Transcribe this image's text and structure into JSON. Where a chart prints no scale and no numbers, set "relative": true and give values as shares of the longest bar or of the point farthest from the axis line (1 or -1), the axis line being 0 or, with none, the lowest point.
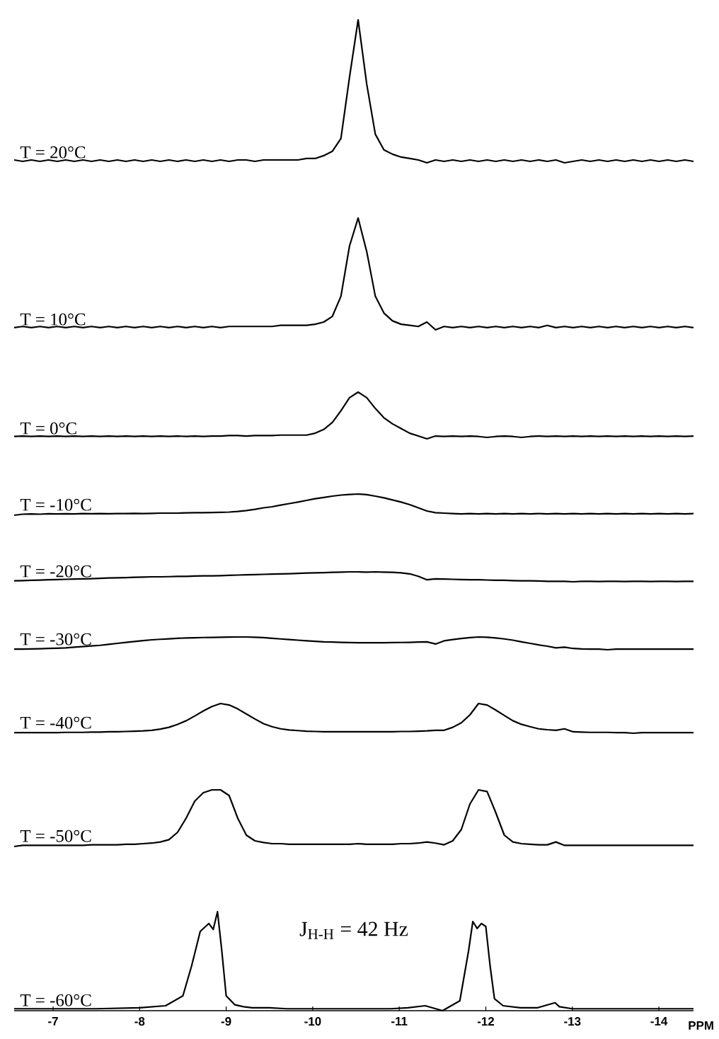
{
  "chart_data": [
    {
      "type": "line",
      "relative": true,
      "tick_labels": false,
      "categories": [
        null,
        null,
        null,
        null,
        null,
        null,
        null,
        null,
        null,
        null,
        null,
        null,
        null,
        null,
        null,
        null,
        null,
        null,
        null,
        null,
        null,
        null,
        null,
        null,
        null,
        null,
        null,
        null,
        null,
        null,
        null,
        null,
        null,
        null,
        null,
        null,
        null,
        null,
        null,
        null,
        null,
        null,
        null,
        null,
        null,
        null,
        null,
        null,
        null,
        null,
        null,
        null,
        null,
        null,
        null,
        null,
        null,
        null,
        null,
        null,
        null,
        null,
        null,
        null,
        null,
        null,
        null,
        null,
        null,
        null,
        null,
        null,
        null,
        null,
        null,
        null,
        null,
        null,
        null,
        null
      ],
      "series": [
        {
          "name": "T = 20°C",
          "color": "#000000",
          "values": [
            0.02,
            0.01,
            0.02,
            0.01,
            0.02,
            0.01,
            0.02,
            0.01,
            0.02,
            0.01,
            0.02,
            0.01,
            0.02,
            0.01,
            0.02,
            0.01,
            0.02,
            0.01,
            0.02,
            0.01,
            0.02,
            0.01,
            0.02,
            0.01,
            0.02,
            0.01,
            0.02,
            0.02,
            0.01,
            0.02,
            0.02,
            0.02,
            0.02,
            0.02,
            0.03,
            0.03,
            0.05,
            0.08,
            0.17,
            0.6,
            1,
            0.55,
            0.2,
            0.09,
            0.06,
            0.04,
            0.03,
            0.02,
            0.0,
            0.02,
            0.01,
            0.02,
            0.01,
            0.02,
            0.01,
            0.02,
            0.01,
            0.02,
            0.01,
            0.02,
            0.01,
            0.02,
            0.01,
            0.02,
            0.0,
            0.01,
            0.02,
            0.01,
            0.02,
            0.01,
            0.02,
            0.01,
            0.02,
            0.01,
            0.02,
            0.01,
            0.02,
            0.01,
            0.02,
            0.01
          ]
        }
      ]
    },
    {
      "type": "line",
      "relative": true,
      "tick_labels": false,
      "categories": [
        null,
        null,
        null,
        null,
        null,
        null,
        null,
        null,
        null,
        null,
        null,
        null,
        null,
        null,
        null,
        null,
        null,
        null,
        null,
        null,
        null,
        null,
        null,
        null,
        null,
        null,
        null,
        null,
        null,
        null,
        null,
        null,
        null,
        null,
        null,
        null,
        null,
        null,
        null,
        null,
        null,
        null,
        null,
        null,
        null,
        null,
        null,
        null,
        null,
        null,
        null,
        null,
        null,
        null,
        null,
        null,
        null,
        null,
        null,
        null,
        null,
        null,
        null,
        null,
        null,
        null,
        null,
        null,
        null,
        null,
        null,
        null,
        null,
        null,
        null,
        null,
        null,
        null,
        null,
        null
      ],
      "series": [
        {
          "name": "T = 10°C",
          "color": "#000000",
          "values": [
            0.02,
            0.03,
            0.02,
            0.03,
            0.02,
            0.03,
            0.02,
            0.03,
            0.02,
            0.03,
            0.02,
            0.03,
            0.02,
            0.03,
            0.02,
            0.03,
            0.02,
            0.03,
            0.02,
            0.03,
            0.02,
            0.03,
            0.02,
            0.03,
            0.02,
            0.03,
            0.03,
            0.03,
            0.03,
            0.03,
            0.03,
            0.04,
            0.04,
            0.04,
            0.04,
            0.05,
            0.07,
            0.12,
            0.3,
            0.75,
            1,
            0.7,
            0.3,
            0.15,
            0.08,
            0.05,
            0.04,
            0.03,
            0.07,
            0.0,
            0.03,
            0.02,
            0.03,
            0.02,
            0.03,
            0.02,
            0.03,
            0.02,
            0.03,
            0.02,
            0.03,
            0.02,
            0.04,
            0.02,
            0.03,
            0.02,
            0.03,
            0.02,
            0.03,
            0.02,
            0.03,
            0.02,
            0.03,
            0.02,
            0.03,
            0.02,
            0.03,
            0.02,
            0.03,
            0.02
          ]
        }
      ]
    },
    {
      "type": "line",
      "relative": true,
      "tick_labels": false,
      "categories": [
        null,
        null,
        null,
        null,
        null,
        null,
        null,
        null,
        null,
        null,
        null,
        null,
        null,
        null,
        null,
        null,
        null,
        null,
        null,
        null,
        null,
        null,
        null,
        null,
        null,
        null,
        null,
        null,
        null,
        null,
        null,
        null,
        null,
        null,
        null,
        null,
        null,
        null,
        null,
        null,
        null,
        null,
        null,
        null,
        null,
        null,
        null,
        null,
        null,
        null,
        null,
        null,
        null,
        null,
        null,
        null,
        null,
        null,
        null,
        null,
        null,
        null,
        null,
        null,
        null,
        null,
        null,
        null,
        null,
        null,
        null,
        null,
        null,
        null,
        null,
        null,
        null,
        null,
        null,
        null
      ],
      "series": [
        {
          "name": "T = 0°C",
          "color": "#000000",
          "values": [
            0.05,
            0.06,
            0.05,
            0.06,
            0.05,
            0.06,
            0.05,
            0.06,
            0.05,
            0.06,
            0.05,
            0.06,
            0.05,
            0.06,
            0.05,
            0.06,
            0.05,
            0.06,
            0.05,
            0.06,
            0.05,
            0.06,
            0.05,
            0.06,
            0.06,
            0.07,
            0.07,
            0.06,
            0.07,
            0.07,
            0.07,
            0.08,
            0.08,
            0.08,
            0.08,
            0.12,
            0.2,
            0.35,
            0.6,
            0.88,
            1,
            0.88,
            0.65,
            0.45,
            0.32,
            0.22,
            0.12,
            0.06,
            0.0,
            0.06,
            0.05,
            0.06,
            0.05,
            0.06,
            0.05,
            0.03,
            0.05,
            0.06,
            0.05,
            0.03,
            0.05,
            0.06,
            0.05,
            0.06,
            0.05,
            0.06,
            0.05,
            0.06,
            0.05,
            0.06,
            0.05,
            0.06,
            0.05,
            0.06,
            0.05,
            0.06,
            0.05,
            0.06,
            0.05,
            0.06
          ]
        }
      ]
    },
    {
      "type": "line",
      "relative": true,
      "tick_labels": false,
      "categories": [
        null,
        null,
        null,
        null,
        null,
        null,
        null,
        null,
        null,
        null,
        null,
        null,
        null,
        null,
        null,
        null,
        null,
        null,
        null,
        null,
        null,
        null,
        null,
        null,
        null,
        null,
        null,
        null,
        null,
        null,
        null,
        null,
        null,
        null,
        null,
        null,
        null,
        null,
        null,
        null,
        null,
        null,
        null,
        null,
        null,
        null,
        null,
        null,
        null,
        null,
        null,
        null,
        null,
        null,
        null,
        null,
        null,
        null,
        null,
        null,
        null,
        null,
        null,
        null,
        null,
        null,
        null,
        null,
        null,
        null,
        null,
        null,
        null,
        null,
        null,
        null,
        null,
        null,
        null,
        null
      ],
      "series": [
        {
          "name": "T = -10°C",
          "color": "#000000",
          "values": [
            0.0,
            0.05,
            0.06,
            0.05,
            0.07,
            0.06,
            0.07,
            0.06,
            0.08,
            0.07,
            0.08,
            0.07,
            0.08,
            0.08,
            0.09,
            0.08,
            0.09,
            0.1,
            0.1,
            0.1,
            0.11,
            0.12,
            0.12,
            0.13,
            0.14,
            0.15,
            0.18,
            0.22,
            0.28,
            0.35,
            0.4,
            0.48,
            0.55,
            0.62,
            0.7,
            0.78,
            0.84,
            0.9,
            0.95,
            0.98,
            1,
            0.97,
            0.9,
            0.82,
            0.72,
            0.62,
            0.5,
            0.35,
            0.2,
            0.12,
            0.1,
            0.08,
            0.06,
            0.08,
            0.06,
            0.08,
            0.06,
            0.08,
            0.06,
            0.08,
            0.06,
            0.08,
            0.06,
            0.08,
            0.06,
            0.08,
            0.06,
            0.08,
            0.06,
            0.08,
            0.06,
            0.08,
            0.06,
            0.08,
            0.06,
            0.08,
            0.06,
            0.08,
            0.06,
            0.08
          ]
        }
      ]
    },
    {
      "type": "line",
      "relative": true,
      "tick_labels": false,
      "categories": [
        null,
        null,
        null,
        null,
        null,
        null,
        null,
        null,
        null,
        null,
        null,
        null,
        null,
        null,
        null,
        null,
        null,
        null,
        null,
        null,
        null,
        null,
        null,
        null,
        null,
        null,
        null,
        null,
        null,
        null,
        null,
        null,
        null,
        null,
        null,
        null,
        null,
        null,
        null,
        null,
        null,
        null,
        null,
        null,
        null,
        null,
        null,
        null,
        null,
        null,
        null,
        null,
        null,
        null,
        null,
        null,
        null,
        null,
        null,
        null,
        null,
        null,
        null,
        null,
        null,
        null,
        null,
        null,
        null,
        null,
        null,
        null,
        null,
        null,
        null,
        null,
        null,
        null,
        null,
        null
      ],
      "series": [
        {
          "name": "T = -20°C",
          "color": "#000000",
          "values": [
            0.1,
            0.12,
            0.15,
            0.17,
            0.2,
            0.22,
            0.25,
            0.28,
            0.3,
            0.32,
            0.35,
            0.38,
            0.4,
            0.42,
            0.45,
            0.48,
            0.5,
            0.5,
            0.52,
            0.55,
            0.55,
            0.58,
            0.6,
            0.6,
            0.62,
            0.65,
            0.68,
            0.7,
            0.72,
            0.75,
            0.78,
            0.8,
            0.82,
            0.85,
            0.88,
            0.9,
            0.92,
            0.95,
            0.97,
            1,
            1,
            0.98,
            1,
            0.97,
            0.95,
            0.9,
            0.8,
            0.55,
            0.2,
            0.3,
            0.28,
            0.25,
            0.22,
            0.2,
            0.2,
            0.18,
            0.15,
            0.15,
            0.12,
            0.1,
            0.1,
            0.08,
            0.05,
            0.05,
            0.05,
            0.0,
            0.05,
            0.05,
            0.03,
            0.05,
            0.05,
            0.03,
            0.05,
            0.05,
            0.03,
            0.05,
            0.05,
            0.03,
            0.05,
            0.05
          ]
        }
      ]
    },
    {
      "type": "line",
      "relative": true,
      "tick_labels": false,
      "categories": [
        null,
        null,
        null,
        null,
        null,
        null,
        null,
        null,
        null,
        null,
        null,
        null,
        null,
        null,
        null,
        null,
        null,
        null,
        null,
        null,
        null,
        null,
        null,
        null,
        null,
        null,
        null,
        null,
        null,
        null,
        null,
        null,
        null,
        null,
        null,
        null,
        null,
        null,
        null,
        null,
        null,
        null,
        null,
        null,
        null,
        null,
        null,
        null,
        null,
        null,
        null,
        null,
        null,
        null,
        null,
        null,
        null,
        null,
        null,
        null,
        null,
        null,
        null,
        null,
        null,
        null,
        null,
        null,
        null,
        null,
        null,
        null,
        null,
        null,
        null,
        null,
        null,
        null,
        null,
        null
      ],
      "series": [
        {
          "name": "T = -30°C",
          "color": "#000000",
          "values": [
            0.05,
            0.05,
            0.06,
            0.08,
            0.1,
            0.12,
            0.15,
            0.2,
            0.25,
            0.3,
            0.35,
            0.42,
            0.5,
            0.58,
            0.65,
            0.72,
            0.78,
            0.82,
            0.86,
            0.9,
            0.92,
            0.94,
            0.96,
            0.97,
            0.98,
            0.99,
            1,
            1,
            0.98,
            0.95,
            0.9,
            0.85,
            0.8,
            0.75,
            0.7,
            0.66,
            0.62,
            0.6,
            0.58,
            0.56,
            0.55,
            0.55,
            0.55,
            0.55,
            0.56,
            0.57,
            0.58,
            0.6,
            0.62,
            0.45,
            0.7,
            0.8,
            0.88,
            0.95,
            1,
            0.98,
            0.92,
            0.85,
            0.75,
            0.62,
            0.5,
            0.38,
            0.28,
            0.15,
            0.2,
            0.1,
            0.06,
            0.05,
            0.05,
            0.0,
            0.05,
            0.05,
            0.05,
            0.05,
            0.05,
            0.05,
            0.05,
            0.05,
            0.05,
            0.05
          ]
        }
      ]
    },
    {
      "type": "line",
      "relative": true,
      "tick_labels": false,
      "categories": [
        null,
        null,
        null,
        null,
        null,
        null,
        null,
        null,
        null,
        null,
        null,
        null,
        null,
        null,
        null,
        null,
        null,
        null,
        null,
        null,
        null,
        null,
        null,
        null,
        null,
        null,
        null,
        null,
        null,
        null,
        null,
        null,
        null,
        null,
        null,
        null,
        null,
        null,
        null,
        null,
        null,
        null,
        null,
        null,
        null,
        null,
        null,
        null,
        null,
        null,
        null,
        null,
        null,
        null,
        null,
        null,
        null,
        null,
        null,
        null,
        null,
        null,
        null,
        null,
        null,
        null,
        null,
        null,
        null,
        null,
        null,
        null,
        null,
        null,
        null,
        null,
        null,
        null,
        null,
        null
      ],
      "series": [
        {
          "name": "T = -40°C",
          "color": "#000000",
          "values": [
            0.02,
            0.02,
            0.02,
            0.02,
            0.02,
            0.02,
            0.03,
            0.03,
            0.03,
            0.04,
            0.04,
            0.05,
            0.05,
            0.06,
            0.07,
            0.08,
            0.1,
            0.14,
            0.2,
            0.3,
            0.42,
            0.58,
            0.75,
            0.9,
            1,
            0.95,
            0.82,
            0.65,
            0.48,
            0.32,
            0.22,
            0.15,
            0.11,
            0.09,
            0.07,
            0.06,
            0.05,
            0.05,
            0.05,
            0.05,
            0.05,
            0.05,
            0.05,
            0.05,
            0.05,
            0.06,
            0.06,
            0.07,
            0.08,
            0.1,
            0.1,
            0.2,
            0.35,
            0.62,
            1,
            0.95,
            0.78,
            0.6,
            0.42,
            0.3,
            0.22,
            0.15,
            0.12,
            0.1,
            0.15,
            0.05,
            0.04,
            0.03,
            0.03,
            0.03,
            0.02,
            0.02,
            0.0,
            0.02,
            0.02,
            0.02,
            0.02,
            0.02,
            0.02,
            0.02
          ]
        }
      ]
    },
    {
      "type": "line",
      "relative": true,
      "tick_labels": false,
      "categories": [
        null,
        null,
        null,
        null,
        null,
        null,
        null,
        null,
        null,
        null,
        null,
        null,
        null,
        null,
        null,
        null,
        null,
        null,
        null,
        null,
        null,
        null,
        null,
        null,
        null,
        null,
        null,
        null,
        null,
        null,
        null,
        null,
        null,
        null,
        null,
        null,
        null,
        null,
        null,
        null,
        null,
        null,
        null,
        null,
        null,
        null,
        null,
        null,
        null,
        null,
        null,
        null,
        null,
        null,
        null,
        null,
        null,
        null,
        null,
        null,
        null,
        null,
        null,
        null,
        null,
        null,
        null,
        null,
        null,
        null,
        null,
        null,
        null,
        null,
        null,
        null,
        null,
        null,
        null,
        null
      ],
      "series": [
        {
          "name": "T = -50°C",
          "color": "#000000",
          "values": [
            0.0,
            0.02,
            0.02,
            0.02,
            0.02,
            0.02,
            0.02,
            0.02,
            0.02,
            0.03,
            0.03,
            0.03,
            0.03,
            0.04,
            0.04,
            0.05,
            0.06,
            0.08,
            0.12,
            0.25,
            0.5,
            0.8,
            0.95,
            1,
            1,
            0.9,
            0.5,
            0.2,
            0.1,
            0.07,
            0.05,
            0.05,
            0.04,
            0.04,
            0.04,
            0.04,
            0.04,
            0.04,
            0.04,
            0.04,
            0.05,
            0.04,
            0.04,
            0.04,
            0.04,
            0.05,
            0.05,
            0.06,
            0.08,
            0.06,
            0.03,
            0.1,
            0.3,
            0.75,
            1,
            0.97,
            0.6,
            0.2,
            0.08,
            0.05,
            0.04,
            0.03,
            0.03,
            0.08,
            0.02,
            0.02,
            0.02,
            0.02,
            0.02,
            0.02,
            0.02,
            0.02,
            0.02,
            0.02,
            0.02,
            0.02,
            0.02,
            0.02,
            0.02,
            0.02
          ]
        }
      ]
    },
    {
      "type": "line",
      "relative": true,
      "xlim": [
        -6.55,
        -14.4
      ],
      "tick_labels": "x",
      "xlabel": "PPM",
      "xticks": [
        -7,
        -8,
        -9,
        -10,
        -11,
        -12,
        -13,
        -14
      ],
      "annotations": [
        "J$_{H-H}$ = 42 Hz"
      ],
      "x": [
        -6.55,
        -7,
        -7.5,
        -8,
        -8.3,
        -8.5,
        -8.6,
        -8.7,
        -8.8,
        -8.85,
        -8.9,
        -8.95,
        -9.0,
        -9.1,
        -9.2,
        -9.3,
        -9.5,
        -9.7,
        -9.9,
        -10.1,
        -10.2,
        -10.3,
        -10.4,
        -10.45,
        -10.5,
        -10.55,
        -10.6,
        -10.7,
        -10.8,
        -10.9,
        -11.1,
        -11.3,
        -11.5,
        -11.7,
        -11.75,
        -11.8,
        -11.85,
        -11.9,
        -11.95,
        -12.0,
        -12.05,
        -12.1,
        -12.2,
        -12.4,
        -12.6,
        -12.8,
        -12.85,
        -13,
        -13.3,
        -13.6,
        -14,
        -14.4
      ],
      "series": [
        {
          "name": "T = -60°C",
          "color": "#000000",
          "values": [
            0.02,
            0.02,
            0.02,
            0.03,
            0.05,
            0.15,
            0.45,
            0.8,
            0.88,
            0.82,
            1,
            0.6,
            0.15,
            0.06,
            0.04,
            0.03,
            0.03,
            0.02,
            0.02,
            0.02,
            0.02,
            0.02,
            0.02,
            0.02,
            0.02,
            0.02,
            0.02,
            0.02,
            0.02,
            0.02,
            0.03,
            0.05,
            0.0,
            0.1,
            0.35,
            0.6,
            0.9,
            0.83,
            0.88,
            0.85,
            0.45,
            0.12,
            0.05,
            0.03,
            0.03,
            0.08,
            0.04,
            0.02,
            0.02,
            0.02,
            0.02,
            0.02
          ]
        }
      ]
    }
  ]
}
